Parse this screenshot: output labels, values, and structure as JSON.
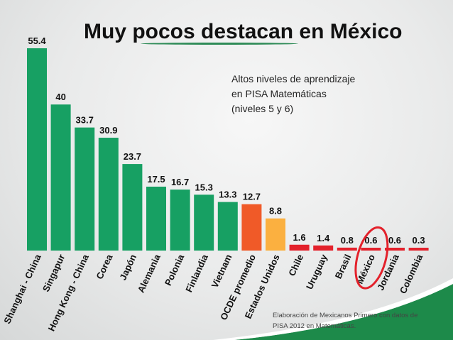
{
  "chart_data": {
    "type": "bar",
    "title": "Muy pocos destacan en México",
    "subtitle_lines": [
      "Altos niveles de aprendizaje",
      "en PISA Matemáticas",
      "(niveles 5 y 6)"
    ],
    "categories": [
      "Shanghai - China",
      "Singapur",
      "Hong Kong - China",
      "Corea",
      "Japón",
      "Alemania",
      "Polonia",
      "Finlandia",
      "Vietnam",
      "OCDE promedio",
      "Estados Unidos",
      "Chile",
      "Uruguay",
      "Brasil",
      "México",
      "Jordania",
      "Colombia"
    ],
    "values": [
      55.4,
      40,
      33.7,
      30.9,
      23.7,
      17.5,
      16.7,
      15.3,
      13.3,
      12.7,
      8.8,
      1.6,
      1.4,
      0.8,
      0.6,
      0.6,
      0.3
    ],
    "value_labels": [
      "55.4",
      "40",
      "33.7",
      "30.9",
      "23.7",
      "17.5",
      "16.7",
      "15.3",
      "13.3",
      "12.7",
      "8.8",
      "1.6",
      "1.4",
      "0.8",
      "0.6",
      "0.6",
      "0.3"
    ],
    "bar_colors": [
      "#17a063",
      "#17a063",
      "#17a063",
      "#17a063",
      "#17a063",
      "#17a063",
      "#17a063",
      "#17a063",
      "#17a063",
      "#f05a28",
      "#fbb040",
      "#e3212b",
      "#e3212b",
      "#e3212b",
      "#e3212b",
      "#e3212b",
      "#e3212b"
    ],
    "highlight": "México",
    "highlight_color": "#e3212b",
    "ylim": [
      0,
      56
    ],
    "grid": false,
    "xlabel": "",
    "ylabel": "",
    "source_lines": [
      "Elaboración de Mexicanos Primero con datos de",
      "PISA 2012 en Matemáticas."
    ]
  }
}
